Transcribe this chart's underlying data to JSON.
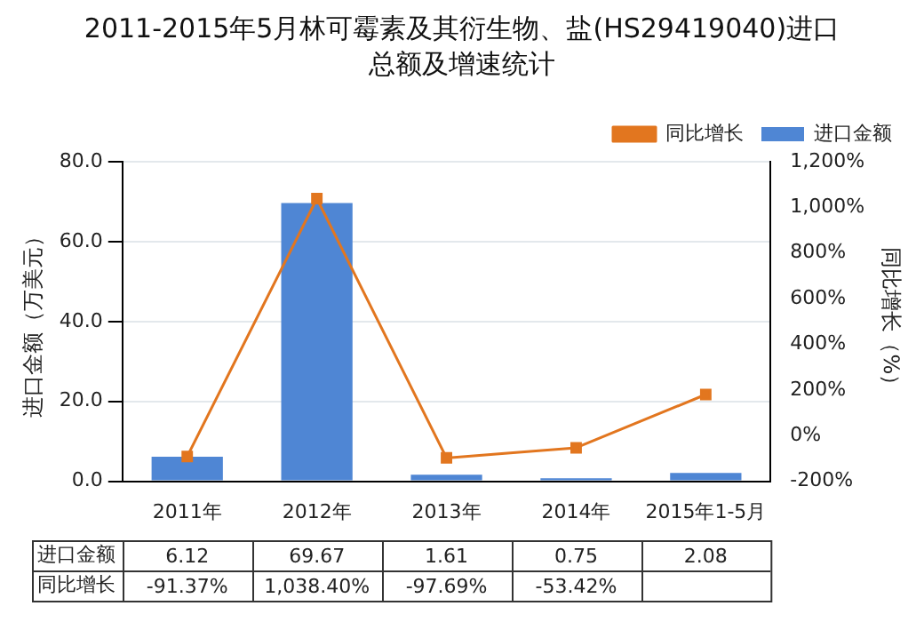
{
  "chart_data": {
    "type": "bar",
    "title": "2011-2015年5月林可霉素及其衍生物、盐(HS29419040)进口总额及增速统计",
    "ylabel": "进口金额（万美元）",
    "y2label": "同比增长（%）",
    "categories": [
      "2011年",
      "2012年",
      "2013年",
      "2014年",
      "2015年1-5月"
    ],
    "series": [
      {
        "name": "进口金额",
        "color": "#4f86d4",
        "values": [
          6.12,
          69.67,
          1.61,
          0.75,
          2.08
        ],
        "value_labels": [
          "6.12",
          "69.67",
          "1.61",
          "0.75",
          "2.08"
        ]
      },
      {
        "name": "同比增长",
        "type": "line",
        "axis": "y2",
        "color": "#e2761f",
        "marker": "square",
        "values": [
          -91.37,
          1038.4,
          -97.69,
          -53.42,
          180
        ],
        "value_labels": [
          "-91.37%",
          "1,038.40%",
          "-97.69%",
          "-53.42%",
          null
        ]
      }
    ],
    "ylim": [
      0,
      80
    ],
    "yticks": [
      {
        "value": 0,
        "label": "0.0"
      },
      {
        "value": 20,
        "label": "20.0"
      },
      {
        "value": 40,
        "label": "40.0"
      },
      {
        "value": 60,
        "label": "60.0"
      },
      {
        "value": 80,
        "label": "80.0"
      }
    ],
    "y2lim": [
      -200,
      1200
    ],
    "y2ticks": [
      {
        "value": -200,
        "label": "-200%"
      },
      {
        "value": 0,
        "label": "0%"
      },
      {
        "value": 200,
        "label": "200%"
      },
      {
        "value": 400,
        "label": "400%"
      },
      {
        "value": 600,
        "label": "600%"
      },
      {
        "value": 800,
        "label": "800%"
      },
      {
        "value": 1000,
        "label": "1,000%"
      },
      {
        "value": 1200,
        "label": "1,200%"
      }
    ],
    "grid": "y",
    "legend": "top right"
  }
}
